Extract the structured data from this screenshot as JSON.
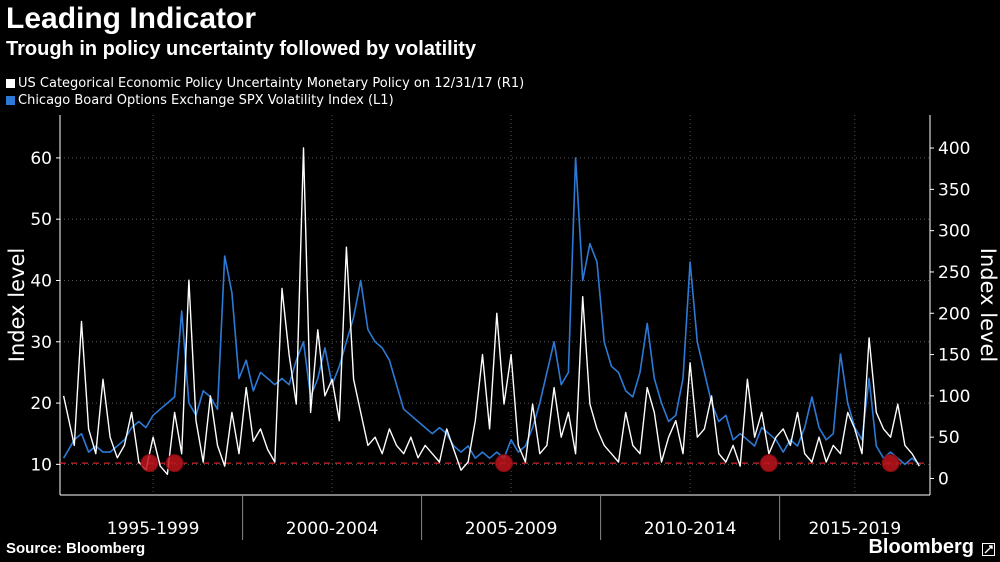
{
  "header": {
    "title": "Leading Indicator",
    "subtitle": "Trough in policy uncertainty followed by volatility"
  },
  "footer": {
    "source": "Source: Bloomberg",
    "brand": "Bloomberg",
    "brand_icon": "bloomberg-terminal-icon"
  },
  "colors": {
    "background": "#000000",
    "epu": "#ffffff",
    "vix": "#2d7ad6",
    "trough_marker": "#c0141c",
    "threshold_line": "#d2242c",
    "grid": "#555555"
  },
  "chart_data": {
    "type": "line",
    "legend": [
      {
        "label": "US Categorical Economic Policy Uncertainty Monetary Policy  on 12/31/17 (R1)",
        "color": "#ffffff"
      },
      {
        "label": "Chicago Board Options Exchange SPX Volatility Index  (L1)",
        "color": "#2d7ad6"
      }
    ],
    "left_axis": {
      "label": "Index level",
      "min": 5,
      "max": 67,
      "ticks": [
        10,
        20,
        30,
        40,
        50,
        60
      ]
    },
    "right_axis": {
      "label": "Index level",
      "min": -20,
      "max": 440,
      "ticks": [
        0,
        50,
        100,
        150,
        200,
        250,
        300,
        350,
        400
      ]
    },
    "x_range": [
      1993.9,
      2018.2
    ],
    "period_labels": [
      "1995-1999",
      "2000-2004",
      "2005-2009",
      "2010-2014",
      "2015-2019"
    ],
    "period_dividers": [
      1994.0,
      1999.0,
      2004.0,
      2009.0,
      2014.0
    ],
    "threshold": {
      "left_value": 10.2
    },
    "trough_markers": [
      1996.4,
      1997.1,
      2006.3,
      2013.7,
      2017.1
    ],
    "series": [
      {
        "name": "US Categorical Economic Policy Uncertainty Monetary Policy",
        "axis": "right",
        "x": [
          1994.0,
          1994.3,
          1994.5,
          1994.7,
          1994.9,
          1995.1,
          1995.3,
          1995.5,
          1995.7,
          1995.9,
          1996.1,
          1996.3,
          1996.5,
          1996.7,
          1996.9,
          1997.1,
          1997.3,
          1997.5,
          1997.7,
          1997.9,
          1998.1,
          1998.3,
          1998.5,
          1998.7,
          1998.9,
          1999.1,
          1999.3,
          1999.5,
          1999.7,
          1999.9,
          2000.1,
          2000.3,
          2000.5,
          2000.7,
          2000.9,
          2001.1,
          2001.3,
          2001.5,
          2001.7,
          2001.9,
          2002.1,
          2002.3,
          2002.5,
          2002.7,
          2002.9,
          2003.1,
          2003.3,
          2003.5,
          2003.7,
          2003.9,
          2004.1,
          2004.3,
          2004.5,
          2004.7,
          2004.9,
          2005.1,
          2005.3,
          2005.5,
          2005.7,
          2005.9,
          2006.1,
          2006.3,
          2006.5,
          2006.7,
          2006.9,
          2007.1,
          2007.3,
          2007.5,
          2007.7,
          2007.9,
          2008.1,
          2008.3,
          2008.5,
          2008.7,
          2008.9,
          2009.1,
          2009.3,
          2009.5,
          2009.7,
          2009.9,
          2010.1,
          2010.3,
          2010.5,
          2010.7,
          2010.9,
          2011.1,
          2011.3,
          2011.5,
          2011.7,
          2011.9,
          2012.1,
          2012.3,
          2012.5,
          2012.7,
          2012.9,
          2013.1,
          2013.3,
          2013.5,
          2013.7,
          2013.9,
          2014.1,
          2014.3,
          2014.5,
          2014.7,
          2014.9,
          2015.1,
          2015.3,
          2015.5,
          2015.7,
          2015.9,
          2016.1,
          2016.3,
          2016.5,
          2016.7,
          2016.9,
          2017.1,
          2017.3,
          2017.5,
          2017.7,
          2017.9
        ],
        "values": [
          100,
          40,
          190,
          60,
          30,
          120,
          50,
          25,
          40,
          80,
          20,
          10,
          50,
          15,
          5,
          80,
          30,
          240,
          70,
          20,
          100,
          40,
          15,
          80,
          30,
          110,
          45,
          60,
          35,
          20,
          230,
          150,
          90,
          400,
          80,
          180,
          100,
          120,
          70,
          280,
          120,
          80,
          40,
          50,
          30,
          60,
          40,
          30,
          50,
          25,
          40,
          30,
          20,
          60,
          35,
          10,
          20,
          70,
          150,
          60,
          200,
          90,
          150,
          40,
          20,
          90,
          30,
          40,
          110,
          50,
          80,
          30,
          220,
          90,
          60,
          40,
          30,
          20,
          80,
          40,
          30,
          110,
          80,
          20,
          50,
          70,
          30,
          140,
          50,
          60,
          100,
          30,
          20,
          40,
          15,
          120,
          50,
          80,
          30,
          50,
          60,
          40,
          80,
          30,
          20,
          50,
          20,
          40,
          30,
          80,
          60,
          30,
          170,
          80,
          60,
          50,
          90,
          40,
          30,
          15
        ]
      },
      {
        "name": "Chicago Board Options Exchange SPX Volatility Index",
        "axis": "left",
        "x": [
          1994.0,
          1994.3,
          1994.5,
          1994.7,
          1994.9,
          1995.1,
          1995.3,
          1995.5,
          1995.7,
          1995.9,
          1996.1,
          1996.3,
          1996.5,
          1996.7,
          1996.9,
          1997.1,
          1997.3,
          1997.5,
          1997.7,
          1997.9,
          1998.1,
          1998.3,
          1998.5,
          1998.7,
          1998.9,
          1999.1,
          1999.3,
          1999.5,
          1999.7,
          1999.9,
          2000.1,
          2000.3,
          2000.5,
          2000.7,
          2000.9,
          2001.1,
          2001.3,
          2001.5,
          2001.7,
          2001.9,
          2002.1,
          2002.3,
          2002.5,
          2002.7,
          2002.9,
          2003.1,
          2003.3,
          2003.5,
          2003.7,
          2003.9,
          2004.1,
          2004.3,
          2004.5,
          2004.7,
          2004.9,
          2005.1,
          2005.3,
          2005.5,
          2005.7,
          2005.9,
          2006.1,
          2006.3,
          2006.5,
          2006.7,
          2006.9,
          2007.1,
          2007.3,
          2007.5,
          2007.7,
          2007.9,
          2008.1,
          2008.3,
          2008.5,
          2008.7,
          2008.9,
          2009.1,
          2009.3,
          2009.5,
          2009.7,
          2009.9,
          2010.1,
          2010.3,
          2010.5,
          2010.7,
          2010.9,
          2011.1,
          2011.3,
          2011.5,
          2011.7,
          2011.9,
          2012.1,
          2012.3,
          2012.5,
          2012.7,
          2012.9,
          2013.1,
          2013.3,
          2013.5,
          2013.7,
          2013.9,
          2014.1,
          2014.3,
          2014.5,
          2014.7,
          2014.9,
          2015.1,
          2015.3,
          2015.5,
          2015.7,
          2015.9,
          2016.1,
          2016.3,
          2016.5,
          2016.7,
          2016.9,
          2017.1,
          2017.3,
          2017.5,
          2017.7,
          2017.9
        ],
        "values": [
          11,
          14,
          15,
          12,
          13,
          12,
          12,
          13,
          14,
          16,
          17,
          16,
          18,
          19,
          20,
          21,
          35,
          20,
          18,
          22,
          21,
          19,
          44,
          38,
          24,
          27,
          22,
          25,
          24,
          23,
          24,
          23,
          27,
          30,
          21,
          24,
          29,
          23,
          26,
          30,
          34,
          40,
          32,
          30,
          29,
          27,
          23,
          19,
          18,
          17,
          16,
          15,
          16,
          15,
          13,
          12,
          13,
          11,
          12,
          11,
          12,
          11,
          14,
          12,
          13,
          16,
          20,
          25,
          30,
          23,
          25,
          60,
          40,
          46,
          43,
          30,
          26,
          25,
          22,
          21,
          25,
          33,
          24,
          20,
          17,
          18,
          24,
          43,
          30,
          25,
          20,
          17,
          18,
          14,
          15,
          14,
          13,
          16,
          15,
          14,
          12,
          14,
          13,
          16,
          21,
          16,
          14,
          15,
          28,
          20,
          16,
          14,
          24,
          13,
          11,
          12,
          11,
          10,
          11,
          10
        ]
      }
    ]
  }
}
